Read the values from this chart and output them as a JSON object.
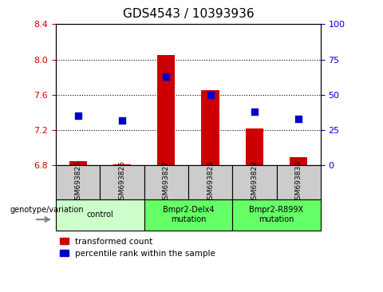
{
  "title": "GDS4543 / 10393936",
  "samples": [
    "GSM693825",
    "GSM693826",
    "GSM693827",
    "GSM693828",
    "GSM693829",
    "GSM693830"
  ],
  "transformed_counts": [
    6.85,
    6.81,
    8.05,
    7.65,
    7.22,
    6.89
  ],
  "percentile_ranks": [
    35,
    32,
    63,
    50,
    38,
    33
  ],
  "ylim_left": [
    6.8,
    8.4
  ],
  "ylim_right": [
    0,
    100
  ],
  "yticks_left": [
    6.8,
    7.2,
    7.6,
    8.0,
    8.4
  ],
  "yticks_right": [
    0,
    25,
    50,
    75,
    100
  ],
  "groups": [
    {
      "label": "control",
      "indices": [
        0,
        1
      ],
      "color": "#ccffcc"
    },
    {
      "label": "Bmpr2-Delx4\nmutation",
      "indices": [
        2,
        3
      ],
      "color": "#66ff66"
    },
    {
      "label": "Bmpr2-R899X\nmutation",
      "indices": [
        4,
        5
      ],
      "color": "#66ff66"
    }
  ],
  "bar_color": "#cc0000",
  "dot_color": "#0000cc",
  "bar_width": 0.4,
  "baseline": 6.8,
  "xticklabel_bg": "#cccccc",
  "grid_color": "#000000",
  "legend_red_label": "transformed count",
  "legend_blue_label": "percentile rank within the sample"
}
